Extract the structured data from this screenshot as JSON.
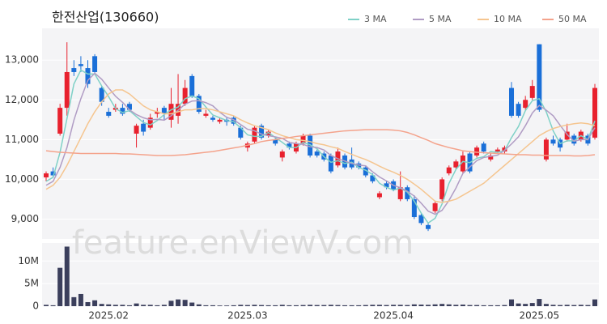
{
  "title": "한전산업(130660)",
  "watermark": "feature.enViewV.com",
  "chart_data": [
    {
      "type": "candlestick",
      "up_color": "#e8212e",
      "down_color": "#1a6fd8",
      "ylim": [
        8500,
        13800
      ],
      "yticks": [
        {
          "value": 9000,
          "label": "9,000"
        },
        {
          "value": 10000,
          "label": "10,000"
        },
        {
          "value": 11000,
          "label": "11,000"
        },
        {
          "value": 12000,
          "label": "12,000"
        },
        {
          "value": 13000,
          "label": "13,000"
        }
      ],
      "grid": true,
      "legend": "top-right",
      "open": [
        10050,
        10200,
        11150,
        11800,
        12800,
        12900,
        12800,
        13100,
        12300,
        11700,
        11750,
        11800,
        11900,
        11150,
        11400,
        11300,
        11650,
        11800,
        11500,
        11600,
        11900,
        12600,
        12100,
        11600,
        11550,
        11450,
        11500,
        11550,
        11300,
        10800,
        10950,
        11350,
        11100,
        11000,
        10550,
        10900,
        10700,
        10900,
        11100,
        10700,
        10650,
        10600,
        10350,
        10600,
        10500,
        10400,
        10300,
        10100,
        9550,
        9900,
        9950,
        9500,
        9800,
        9500,
        9100,
        8850,
        9200,
        9500,
        10150,
        10300,
        10200,
        10650,
        10600,
        10900,
        10500,
        10700,
        10700,
        12300,
        11900,
        11800,
        12050,
        13400,
        10500,
        11000,
        11000,
        11000,
        11100,
        11000,
        11100,
        11050
      ],
      "high": [
        10200,
        10300,
        11900,
        13450,
        13000,
        13100,
        13000,
        13150,
        12350,
        11800,
        11900,
        11900,
        11950,
        11400,
        11500,
        11650,
        11800,
        11850,
        12300,
        12650,
        12500,
        12650,
        12150,
        11750,
        11600,
        11550,
        11550,
        11600,
        11350,
        10950,
        11350,
        11400,
        11250,
        11050,
        10750,
        10950,
        10950,
        11150,
        11150,
        10750,
        10700,
        10650,
        10800,
        10650,
        10800,
        10450,
        10350,
        10150,
        9700,
        9950,
        10000,
        10200,
        9850,
        9600,
        9150,
        8900,
        9450,
        10050,
        10350,
        10500,
        10700,
        10700,
        10850,
        10950,
        10650,
        10800,
        10850,
        12450,
        11950,
        12100,
        12500,
        13400,
        11050,
        11100,
        11050,
        11400,
        11150,
        11250,
        11150,
        12400
      ],
      "low": [
        9950,
        10050,
        11100,
        11600,
        12600,
        12700,
        12300,
        12650,
        11850,
        11550,
        11700,
        11600,
        11700,
        10800,
        11100,
        11250,
        11550,
        11500,
        11300,
        11400,
        11850,
        12050,
        11650,
        11550,
        11450,
        11400,
        11350,
        11350,
        11000,
        10700,
        10900,
        11000,
        11050,
        10850,
        10450,
        10750,
        10650,
        10850,
        10550,
        10550,
        10450,
        10150,
        10300,
        10250,
        10250,
        10250,
        10050,
        9900,
        9500,
        9750,
        9700,
        9450,
        9450,
        9000,
        8850,
        8700,
        9150,
        9450,
        10100,
        10250,
        10150,
        10150,
        10550,
        10650,
        10450,
        10650,
        10650,
        11550,
        11550,
        11750,
        12000,
        11700,
        10450,
        10850,
        10700,
        10950,
        10850,
        10950,
        10850,
        11000
      ],
      "close": [
        10150,
        10100,
        11800,
        12700,
        12700,
        12850,
        12400,
        12700,
        11950,
        11600,
        11800,
        11650,
        11750,
        11350,
        11200,
        11550,
        11700,
        11650,
        11900,
        11900,
        12300,
        12100,
        11700,
        11650,
        11500,
        11500,
        11450,
        11400,
        11050,
        10900,
        11300,
        11050,
        11200,
        10900,
        10700,
        10800,
        10900,
        11100,
        10600,
        10600,
        10500,
        10200,
        10700,
        10300,
        10300,
        10300,
        10100,
        9950,
        9650,
        9800,
        9750,
        9800,
        9500,
        9050,
        8900,
        8750,
        9400,
        10000,
        10300,
        10450,
        10600,
        10200,
        10800,
        10700,
        10600,
        10750,
        10800,
        11600,
        11600,
        12000,
        12350,
        11750,
        11000,
        10900,
        10800,
        11200,
        10900,
        11200,
        10900,
        12300
      ],
      "series": [
        {
          "name": "3 MA",
          "color": "#7fd1c7",
          "values": [
            9950,
            10050,
            10680,
            11530,
            12400,
            12750,
            12650,
            12650,
            12350,
            12080,
            11780,
            11680,
            11730,
            11580,
            11430,
            11370,
            11480,
            11630,
            11750,
            11820,
            12030,
            12100,
            12030,
            11820,
            11620,
            11550,
            11480,
            11450,
            11300,
            11120,
            11080,
            11080,
            11180,
            11050,
            10930,
            10800,
            10800,
            10930,
            10870,
            10770,
            10570,
            10430,
            10470,
            10400,
            10430,
            10300,
            10230,
            10120,
            9900,
            9800,
            9730,
            9780,
            9680,
            9450,
            9150,
            8900,
            9020,
            9380,
            9900,
            10250,
            10450,
            10420,
            10530,
            10570,
            10700,
            10680,
            10720,
            11050,
            11330,
            11730,
            11980,
            12030,
            11700,
            11220,
            10900,
            10970,
            10970,
            11100,
            11000,
            11470
          ]
        },
        {
          "name": "5 MA",
          "color": "#b09cc4",
          "values": [
            9850,
            9950,
            10300,
            10800,
            11490,
            12030,
            12490,
            12670,
            12520,
            12300,
            12090,
            11940,
            11750,
            11630,
            11550,
            11500,
            11510,
            11490,
            11600,
            11740,
            11890,
            11970,
            11980,
            11930,
            11850,
            11690,
            11560,
            11500,
            11380,
            11260,
            11220,
            11140,
            11100,
            11070,
            11030,
            10930,
            10900,
            10880,
            10820,
            10800,
            10740,
            10600,
            10520,
            10460,
            10400,
            10360,
            10340,
            10190,
            10060,
            9960,
            9850,
            9790,
            9700,
            9580,
            9400,
            9200,
            9120,
            9220,
            9470,
            9780,
            10150,
            10310,
            10470,
            10550,
            10580,
            10610,
            10730,
            10890,
            11070,
            11350,
            11670,
            11860,
            11740,
            11600,
            11360,
            11130,
            10960,
            11000,
            11000,
            11300
          ]
        },
        {
          "name": "10 MA",
          "color": "#f5c58f",
          "values": [
            9750,
            9850,
            10050,
            10350,
            10700,
            11050,
            11400,
            11700,
            11950,
            12150,
            12250,
            12250,
            12150,
            12000,
            11850,
            11750,
            11700,
            11650,
            11650,
            11700,
            11750,
            11750,
            11780,
            11780,
            11750,
            11700,
            11650,
            11600,
            11500,
            11420,
            11350,
            11300,
            11250,
            11170,
            11100,
            11050,
            11000,
            10980,
            10950,
            10900,
            10870,
            10820,
            10780,
            10700,
            10630,
            10560,
            10500,
            10420,
            10330,
            10250,
            10180,
            10100,
            10000,
            9880,
            9750,
            9600,
            9450,
            9420,
            9450,
            9500,
            9600,
            9700,
            9800,
            9900,
            10050,
            10200,
            10350,
            10500,
            10650,
            10800,
            10950,
            11100,
            11200,
            11280,
            11330,
            11370,
            11400,
            11420,
            11400,
            11350
          ]
        },
        {
          "name": "50 MA",
          "color": "#f4a38c",
          "values": [
            10720,
            10700,
            10680,
            10670,
            10660,
            10650,
            10650,
            10650,
            10650,
            10650,
            10650,
            10640,
            10640,
            10630,
            10620,
            10610,
            10600,
            10600,
            10600,
            10610,
            10620,
            10640,
            10660,
            10680,
            10700,
            10730,
            10760,
            10790,
            10820,
            10860,
            10900,
            10950,
            10980,
            11000,
            11030,
            11050,
            11080,
            11100,
            11120,
            11140,
            11160,
            11180,
            11200,
            11220,
            11230,
            11240,
            11250,
            11250,
            11250,
            11250,
            11240,
            11220,
            11180,
            11120,
            11050,
            10980,
            10900,
            10850,
            10800,
            10760,
            10720,
            10700,
            10680,
            10670,
            10660,
            10650,
            10640,
            10630,
            10620,
            10620,
            10610,
            10610,
            10600,
            10600,
            10600,
            10600,
            10590,
            10590,
            10600,
            10620
          ]
        }
      ]
    },
    {
      "type": "bar",
      "color": "#3b3f5c",
      "ylim": [
        0,
        14000000
      ],
      "yticks": [
        0,
        {
          "value": 5000000,
          "label": "5M"
        },
        {
          "value": 10000000,
          "label": "10M"
        }
      ],
      "categories": [
        null,
        null,
        null,
        null,
        null,
        null,
        null,
        null,
        null,
        "2025.02",
        null,
        null,
        null,
        null,
        null,
        null,
        null,
        null,
        null,
        null,
        null,
        null,
        null,
        null,
        null,
        null,
        null,
        null,
        null,
        "2025.03",
        null,
        null,
        null,
        null,
        null,
        null,
        null,
        null,
        null,
        null,
        null,
        null,
        null,
        null,
        null,
        null,
        null,
        null,
        null,
        null,
        "2025.04",
        null,
        null,
        null,
        null,
        null,
        null,
        null,
        null,
        null,
        null,
        null,
        null,
        null,
        null,
        null,
        null,
        null,
        null,
        null,
        null,
        "2025.05",
        null,
        null,
        null,
        null,
        null,
        null,
        null,
        null
      ],
      "values": [
        300000,
        200000,
        8500000,
        13200000,
        2000000,
        2700000,
        900000,
        1300000,
        500000,
        400000,
        300000,
        300000,
        200000,
        600000,
        300000,
        300000,
        200000,
        300000,
        1200000,
        1500000,
        1400000,
        800000,
        400000,
        200000,
        200000,
        150000,
        150000,
        200000,
        300000,
        250000,
        300000,
        250000,
        200000,
        200000,
        300000,
        200000,
        200000,
        250000,
        300000,
        250000,
        250000,
        300000,
        250000,
        200000,
        200000,
        200000,
        250000,
        300000,
        300000,
        250000,
        300000,
        300000,
        250000,
        400000,
        350000,
        300000,
        400000,
        500000,
        400000,
        300000,
        350000,
        250000,
        250000,
        200000,
        200000,
        200000,
        250000,
        1500000,
        600000,
        500000,
        700000,
        1600000,
        500000,
        300000,
        250000,
        300000,
        250000,
        300000,
        250000,
        1500000
      ]
    }
  ]
}
